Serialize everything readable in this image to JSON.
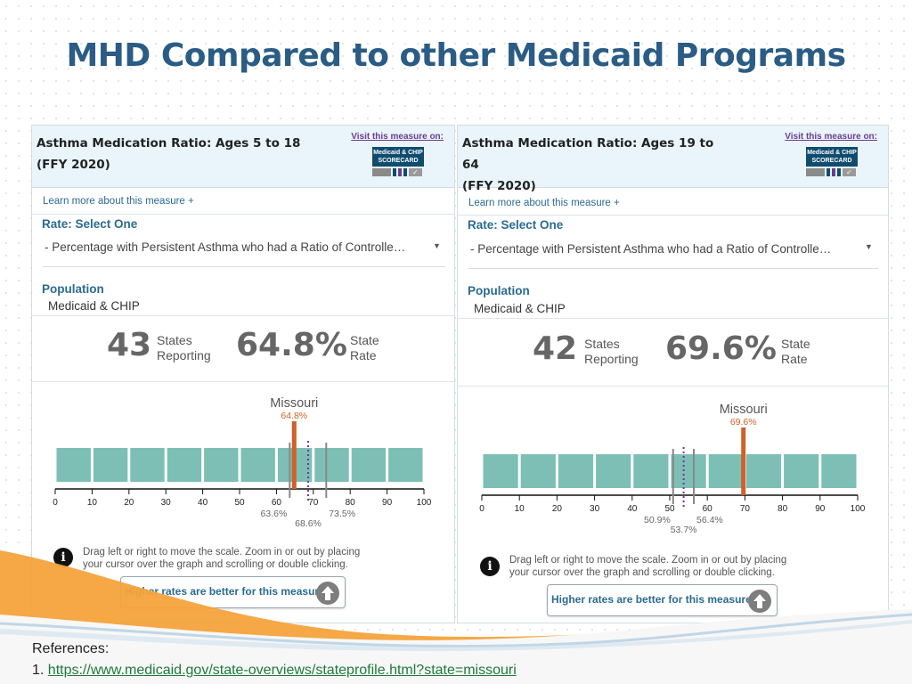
{
  "slide": {
    "title": "MHD Compared to other Medicaid Programs",
    "references_label": "References:",
    "reference_index": "1.",
    "reference_link": "https://www.medicaid.gov/state-overviews/stateprofile.html?state=missouri"
  },
  "colors": {
    "title": "#2a5c85",
    "accent": "#2a6b91",
    "bar": "#7dbfb4",
    "state_marker": "#d0602a",
    "median_marker": "#7b2fa0",
    "quartile_marker": "#888888",
    "badge": "#0f4c6e"
  },
  "panels": [
    {
      "title_line1": "Asthma Medication Ratio: Ages 5 to 18",
      "title_line2": "(FFY 2020)",
      "visit_label": "Visit this measure on:",
      "badge_line1": "Medicaid & CHIP",
      "badge_line2": "SCORECARD",
      "learn_more": "Learn more about this measure +",
      "rate_label": "Rate: Select One",
      "rate_value": "- Percentage with Persistent Asthma who had a Ratio of Controlle…",
      "population_label": "Population",
      "population_value": "Medicaid & CHIP",
      "states_count": "43",
      "states_label_1": "States",
      "states_label_2": "Reporting",
      "state_rate": "64.8%",
      "rate_label_1": "State",
      "rate_label_2": "Rate",
      "info_text_1": "Drag left or right to move the scale. Zoom in or out by placing",
      "info_text_2": "your cursor over the graph and scrolling or double clicking.",
      "higher_label": "Higher rates are better for this measure",
      "chart": {
        "state_name": "Missouri",
        "state_value": 64.8,
        "state_value_label": "64.8%",
        "q1": 63.6,
        "q1_label": "63.6%",
        "median": 68.6,
        "median_label": "68.6%",
        "q3": 73.5,
        "q3_label": "73.5%",
        "ticks": [
          0,
          10,
          20,
          30,
          40,
          50,
          60,
          70,
          80,
          90,
          100
        ]
      }
    },
    {
      "title_line1": "Asthma Medication Ratio: Ages 19 to 64",
      "title_line2": "(FFY 2020)",
      "visit_label": "Visit this measure on:",
      "badge_line1": "Medicaid & CHIP",
      "badge_line2": "SCORECARD",
      "learn_more": "Learn more about this measure +",
      "rate_label": "Rate: Select One",
      "rate_value": "- Percentage with Persistent Asthma who had a Ratio of Controlle…",
      "population_label": "Population",
      "population_value": "Medicaid & CHIP",
      "states_count": "42",
      "states_label_1": "States",
      "states_label_2": "Reporting",
      "state_rate": "69.6%",
      "rate_label_1": "State",
      "rate_label_2": "Rate",
      "info_text_1": "Drag left or right to move the scale. Zoom in or out by placing",
      "info_text_2": "your cursor over the graph and scrolling or double clicking.",
      "higher_label": "Higher rates are better for this measure",
      "chart": {
        "state_name": "Missouri",
        "state_value": 69.6,
        "state_value_label": "69.6%",
        "q1": 50.9,
        "q1_label": "50.9%",
        "median": 53.7,
        "median_label": "53.7%",
        "q3": 56.4,
        "q3_label": "56.4%",
        "ticks": [
          0,
          10,
          20,
          30,
          40,
          50,
          60,
          70,
          80,
          90,
          100
        ]
      }
    }
  ]
}
